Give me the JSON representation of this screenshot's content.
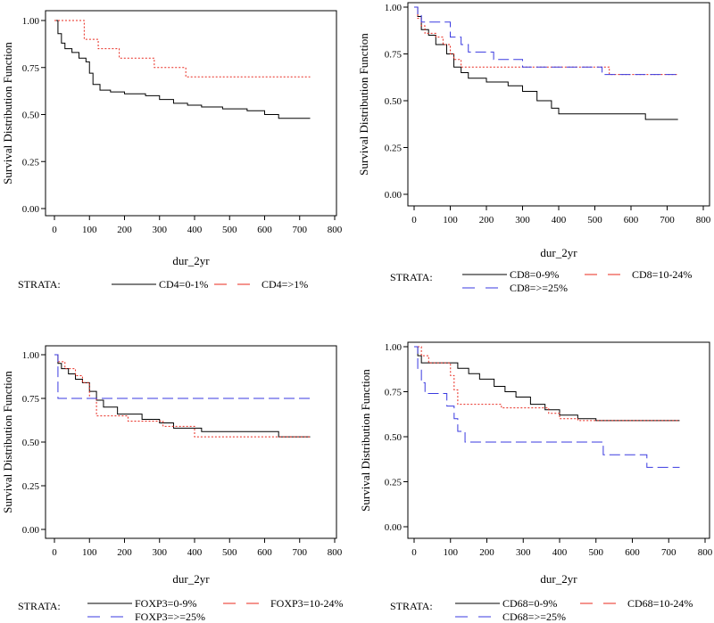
{
  "chart_data": [
    {
      "type": "line",
      "xlabel": "dur_2yr",
      "ylabel": "Survival Distribution Function",
      "xlim": [
        0,
        800
      ],
      "ylim": [
        0,
        1
      ],
      "xticks": [
        "0",
        "100",
        "200",
        "300",
        "400",
        "500",
        "600",
        "700",
        "800"
      ],
      "yticks": [
        "0.00",
        "0.25",
        "0.50",
        "0.75",
        "1.00"
      ],
      "legend_title": "STRATA:",
      "series": [
        {
          "name": "CD4=0-1%",
          "color": "#000000",
          "dash": "solid",
          "points": [
            [
              0,
              1.0
            ],
            [
              10,
              0.93
            ],
            [
              20,
              0.88
            ],
            [
              30,
              0.85
            ],
            [
              50,
              0.83
            ],
            [
              70,
              0.8
            ],
            [
              90,
              0.78
            ],
            [
              100,
              0.72
            ],
            [
              110,
              0.66
            ],
            [
              130,
              0.63
            ],
            [
              160,
              0.62
            ],
            [
              200,
              0.61
            ],
            [
              260,
              0.6
            ],
            [
              300,
              0.58
            ],
            [
              340,
              0.56
            ],
            [
              380,
              0.55
            ],
            [
              420,
              0.54
            ],
            [
              480,
              0.53
            ],
            [
              550,
              0.52
            ],
            [
              600,
              0.5
            ],
            [
              640,
              0.48
            ],
            [
              730,
              0.48
            ]
          ]
        },
        {
          "name": "CD4=>1%",
          "color": "#e8291e",
          "dash": "dotted",
          "points": [
            [
              0,
              1.0
            ],
            [
              80,
              1.0
            ],
            [
              85,
              0.9
            ],
            [
              120,
              0.9
            ],
            [
              125,
              0.85
            ],
            [
              180,
              0.85
            ],
            [
              185,
              0.8
            ],
            [
              280,
              0.8
            ],
            [
              285,
              0.75
            ],
            [
              370,
              0.75
            ],
            [
              375,
              0.7
            ],
            [
              730,
              0.7
            ]
          ]
        }
      ]
    },
    {
      "type": "line",
      "xlabel": "dur_2yr",
      "ylabel": "Survival Distribution Function",
      "xlim": [
        0,
        800
      ],
      "ylim": [
        0,
        1
      ],
      "xticks": [
        "0",
        "100",
        "200",
        "300",
        "400",
        "500",
        "600",
        "700",
        "800"
      ],
      "yticks": [
        "0.00",
        "0.25",
        "0.50",
        "0.75",
        "1.00"
      ],
      "legend_title": "STRATA:",
      "series": [
        {
          "name": "CD8=0-9%",
          "color": "#000000",
          "dash": "solid",
          "points": [
            [
              0,
              1.0
            ],
            [
              10,
              0.95
            ],
            [
              20,
              0.88
            ],
            [
              40,
              0.85
            ],
            [
              60,
              0.8
            ],
            [
              90,
              0.75
            ],
            [
              110,
              0.68
            ],
            [
              130,
              0.65
            ],
            [
              150,
              0.62
            ],
            [
              200,
              0.6
            ],
            [
              260,
              0.58
            ],
            [
              300,
              0.55
            ],
            [
              340,
              0.5
            ],
            [
              380,
              0.46
            ],
            [
              400,
              0.43
            ],
            [
              520,
              0.43
            ],
            [
              640,
              0.4
            ],
            [
              730,
              0.4
            ]
          ]
        },
        {
          "name": "CD8=10-24%",
          "color": "#e8291e",
          "dash": "dotted",
          "points": [
            [
              0,
              1.0
            ],
            [
              10,
              0.94
            ],
            [
              20,
              0.9
            ],
            [
              30,
              0.86
            ],
            [
              60,
              0.84
            ],
            [
              80,
              0.8
            ],
            [
              100,
              0.75
            ],
            [
              110,
              0.72
            ],
            [
              130,
              0.68
            ],
            [
              530,
              0.68
            ],
            [
              540,
              0.64
            ],
            [
              730,
              0.64
            ]
          ]
        },
        {
          "name": "CD8=>=25%",
          "color": "#3a3ae0",
          "dash": "longdash",
          "points": [
            [
              0,
              1.0
            ],
            [
              10,
              0.96
            ],
            [
              20,
              0.92
            ],
            [
              80,
              0.92
            ],
            [
              100,
              0.84
            ],
            [
              130,
              0.8
            ],
            [
              150,
              0.76
            ],
            [
              200,
              0.76
            ],
            [
              220,
              0.72
            ],
            [
              280,
              0.72
            ],
            [
              300,
              0.68
            ],
            [
              500,
              0.68
            ],
            [
              520,
              0.64
            ],
            [
              730,
              0.64
            ]
          ]
        }
      ]
    },
    {
      "type": "line",
      "xlabel": "dur_2yr",
      "ylabel": "Survival Distribution Function",
      "xlim": [
        0,
        800
      ],
      "ylim": [
        0,
        1
      ],
      "xticks": [
        "0",
        "100",
        "200",
        "300",
        "400",
        "500",
        "600",
        "700",
        "800"
      ],
      "yticks": [
        "0.00",
        "0.25",
        "0.50",
        "0.75",
        "1.00"
      ],
      "legend_title": "STRATA:",
      "series": [
        {
          "name": "FOXP3=0-9%",
          "color": "#000000",
          "dash": "solid",
          "points": [
            [
              0,
              1.0
            ],
            [
              10,
              0.95
            ],
            [
              20,
              0.92
            ],
            [
              40,
              0.89
            ],
            [
              60,
              0.86
            ],
            [
              80,
              0.84
            ],
            [
              100,
              0.79
            ],
            [
              120,
              0.74
            ],
            [
              140,
              0.7
            ],
            [
              180,
              0.66
            ],
            [
              230,
              0.66
            ],
            [
              250,
              0.63
            ],
            [
              300,
              0.61
            ],
            [
              340,
              0.58
            ],
            [
              400,
              0.58
            ],
            [
              420,
              0.56
            ],
            [
              600,
              0.56
            ],
            [
              640,
              0.53
            ],
            [
              730,
              0.53
            ]
          ]
        },
        {
          "name": "FOXP3=10-24%",
          "color": "#e8291e",
          "dash": "dotted",
          "points": [
            [
              0,
              1.0
            ],
            [
              10,
              0.96
            ],
            [
              30,
              0.92
            ],
            [
              60,
              0.88
            ],
            [
              80,
              0.84
            ],
            [
              100,
              0.75
            ],
            [
              120,
              0.65
            ],
            [
              200,
              0.65
            ],
            [
              210,
              0.62
            ],
            [
              300,
              0.62
            ],
            [
              310,
              0.59
            ],
            [
              390,
              0.59
            ],
            [
              400,
              0.53
            ],
            [
              730,
              0.53
            ]
          ]
        },
        {
          "name": "FOXP3=>=25%",
          "color": "#3a3ae0",
          "dash": "longdash",
          "points": [
            [
              0,
              1.0
            ],
            [
              10,
              0.75
            ],
            [
              730,
              0.75
            ]
          ]
        }
      ]
    },
    {
      "type": "line",
      "xlabel": "dur_2yr",
      "ylabel": "Survival Distribution Function",
      "xlim": [
        0,
        800
      ],
      "ylim": [
        0,
        1
      ],
      "xticks": [
        "0",
        "100",
        "200",
        "300",
        "400",
        "500",
        "600",
        "700",
        "800"
      ],
      "yticks": [
        "0.00",
        "0.25",
        "0.50",
        "0.75",
        "1.00"
      ],
      "legend_title": "STRATA:",
      "series": [
        {
          "name": "CD68=0-9%",
          "color": "#000000",
          "dash": "solid",
          "points": [
            [
              0,
              1.0
            ],
            [
              10,
              0.95
            ],
            [
              20,
              0.91
            ],
            [
              100,
              0.91
            ],
            [
              120,
              0.88
            ],
            [
              150,
              0.85
            ],
            [
              180,
              0.82
            ],
            [
              220,
              0.78
            ],
            [
              250,
              0.75
            ],
            [
              280,
              0.72
            ],
            [
              320,
              0.68
            ],
            [
              360,
              0.65
            ],
            [
              400,
              0.62
            ],
            [
              450,
              0.6
            ],
            [
              500,
              0.59
            ],
            [
              730,
              0.59
            ]
          ]
        },
        {
          "name": "CD68=10-24%",
          "color": "#e8291e",
          "dash": "dotted",
          "points": [
            [
              0,
              1.0
            ],
            [
              20,
              0.95
            ],
            [
              40,
              0.91
            ],
            [
              80,
              0.91
            ],
            [
              100,
              0.84
            ],
            [
              110,
              0.76
            ],
            [
              120,
              0.68
            ],
            [
              220,
              0.68
            ],
            [
              240,
              0.66
            ],
            [
              350,
              0.66
            ],
            [
              370,
              0.63
            ],
            [
              400,
              0.6
            ],
            [
              450,
              0.59
            ],
            [
              730,
              0.59
            ]
          ]
        },
        {
          "name": "CD68=>=25%",
          "color": "#3a3ae0",
          "dash": "longdash",
          "points": [
            [
              0,
              1.0
            ],
            [
              10,
              0.87
            ],
            [
              20,
              0.8
            ],
            [
              30,
              0.74
            ],
            [
              80,
              0.74
            ],
            [
              90,
              0.67
            ],
            [
              110,
              0.6
            ],
            [
              120,
              0.53
            ],
            [
              140,
              0.47
            ],
            [
              510,
              0.47
            ],
            [
              520,
              0.4
            ],
            [
              630,
              0.4
            ],
            [
              640,
              0.33
            ],
            [
              730,
              0.33
            ]
          ]
        }
      ]
    }
  ]
}
